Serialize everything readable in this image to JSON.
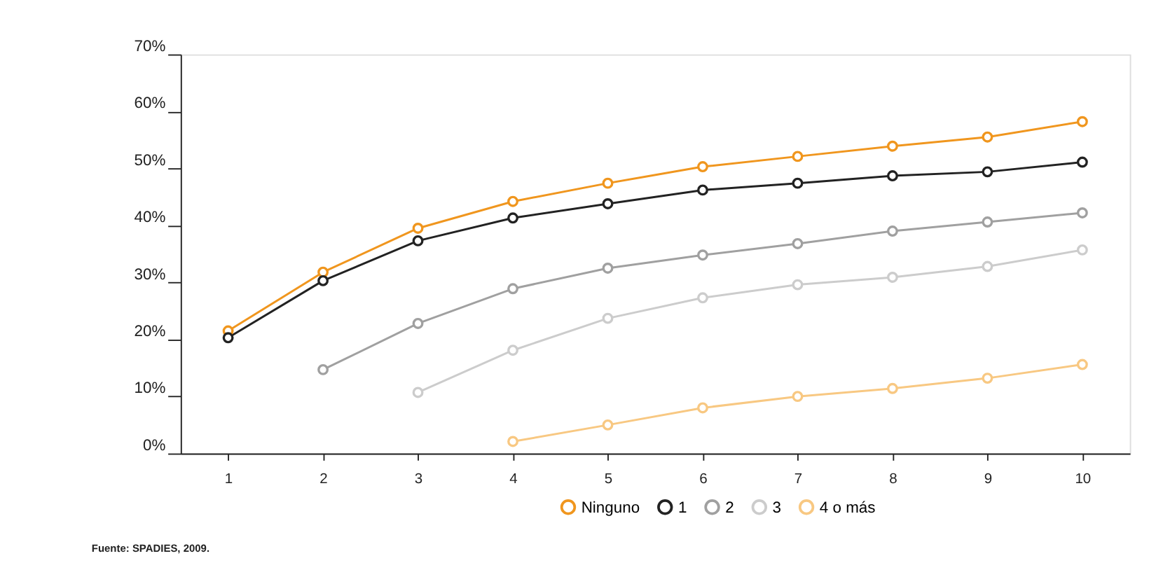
{
  "chart_data": {
    "type": "line",
    "categories": [
      "1",
      "2",
      "3",
      "4",
      "5",
      "6",
      "7",
      "8",
      "9",
      "10"
    ],
    "series": [
      {
        "name": "Ninguno",
        "color": "#f0961e",
        "values": [
          21.5,
          31.8,
          39.5,
          44.2,
          47.4,
          50.3,
          52.1,
          53.9,
          55.5,
          58.2
        ]
      },
      {
        "name": "1",
        "color": "#222222",
        "values": [
          20.3,
          30.3,
          37.3,
          41.3,
          43.8,
          46.2,
          47.4,
          48.7,
          49.4,
          51.1
        ]
      },
      {
        "name": "2",
        "color": "#a0a0a0",
        "values": [
          null,
          14.7,
          22.8,
          28.9,
          32.5,
          34.8,
          36.8,
          39.0,
          40.6,
          42.2
        ]
      },
      {
        "name": "3",
        "color": "#cccccc",
        "values": [
          null,
          null,
          10.7,
          18.1,
          23.7,
          27.3,
          29.6,
          30.9,
          32.8,
          35.7
        ]
      },
      {
        "name": "4 o más",
        "color": "#f8c882",
        "values": [
          null,
          null,
          null,
          2.1,
          5.0,
          8.0,
          10.0,
          11.4,
          13.2,
          15.6
        ]
      }
    ],
    "ylim": [
      0,
      70
    ],
    "yticks": [
      {
        "value": 0,
        "label": "0%"
      },
      {
        "value": 10,
        "label": "10%"
      },
      {
        "value": 20,
        "label": "20%"
      },
      {
        "value": 30,
        "label": "30%"
      },
      {
        "value": 40,
        "label": "40%"
      },
      {
        "value": 50,
        "label": "50%"
      },
      {
        "value": 60,
        "label": "60%"
      },
      {
        "value": 70,
        "label": "70%"
      }
    ],
    "grid": false,
    "legend": "bottom",
    "marker": "circle",
    "line_style": "solid",
    "annotations": [
      "Fuente: SPADIES, 2009."
    ]
  }
}
